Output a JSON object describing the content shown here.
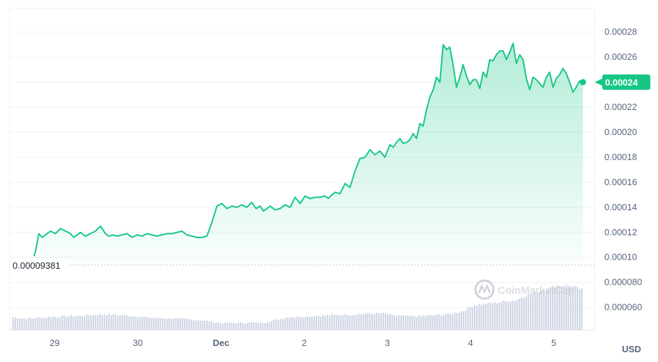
{
  "chart_data": {
    "type": "area",
    "currency": "USD",
    "y_ticks": [
      "0.00028",
      "0.00026",
      "0.00024",
      "0.00022",
      "0.00020",
      "0.00018",
      "0.00016",
      "0.00014",
      "0.00012",
      "0.00010",
      "0.000080",
      "0.000060"
    ],
    "y_tick_values": [
      0.00028,
      0.00026,
      0.00024,
      0.00022,
      0.0002,
      0.00018,
      0.00016,
      0.00014,
      0.00012,
      0.0001,
      8e-05,
      6e-05
    ],
    "ylim": [
      4.2e-05,
      0.000299
    ],
    "x_ticks": [
      {
        "label": "29",
        "x": 0.25,
        "bold": false
      },
      {
        "label": "30",
        "x": 1.25,
        "bold": false
      },
      {
        "label": "Dec",
        "x": 2.25,
        "bold": true
      },
      {
        "label": "2",
        "x": 3.25,
        "bold": false
      },
      {
        "label": "3",
        "x": 4.25,
        "bold": false
      },
      {
        "label": "4",
        "x": 5.25,
        "bold": false
      },
      {
        "label": "5",
        "x": 6.25,
        "bold": false
      }
    ],
    "xlim": [
      -0.29,
      6.74
    ],
    "current_price": {
      "label": "0.00024",
      "value": 0.00024
    },
    "baseline": {
      "label": "0.00009381",
      "value": 9.381e-05
    },
    "price": {
      "x": [
        0.0,
        0.02,
        0.06,
        0.1,
        0.14,
        0.2,
        0.26,
        0.32,
        0.38,
        0.44,
        0.48,
        0.52,
        0.56,
        0.62,
        0.68,
        0.74,
        0.8,
        0.86,
        0.9,
        0.95,
        1.0,
        1.06,
        1.12,
        1.18,
        1.24,
        1.3,
        1.36,
        1.42,
        1.48,
        1.54,
        1.6,
        1.66,
        1.72,
        1.78,
        1.84,
        1.9,
        1.96,
        2.02,
        2.08,
        2.14,
        2.2,
        2.26,
        2.32,
        2.38,
        2.44,
        2.5,
        2.56,
        2.62,
        2.67,
        2.72,
        2.76,
        2.8,
        2.84,
        2.9,
        2.96,
        3.02,
        3.08,
        3.14,
        3.2,
        3.26,
        3.32,
        3.38,
        3.44,
        3.5,
        3.54,
        3.58,
        3.62,
        3.68,
        3.74,
        3.8,
        3.86,
        3.92,
        3.98,
        4.04,
        4.1,
        4.16,
        4.22,
        4.28,
        4.32,
        4.36,
        4.4,
        4.44,
        4.48,
        4.52,
        4.56,
        4.6,
        4.64,
        4.68,
        4.72,
        4.76,
        4.8,
        4.84,
        4.88,
        4.92,
        4.96,
        5.0,
        5.04,
        5.08,
        5.12,
        5.16,
        5.2,
        5.24,
        5.28,
        5.32,
        5.36,
        5.4,
        5.44,
        5.48,
        5.52,
        5.56,
        5.6,
        5.64,
        5.68,
        5.72,
        5.76,
        5.8,
        5.84,
        5.88,
        5.92,
        5.96,
        6.0,
        6.04,
        6.08,
        6.12,
        6.16,
        6.2,
        6.24,
        6.28,
        6.32,
        6.36,
        6.4,
        6.44,
        6.48,
        6.52,
        6.56,
        6.6
      ],
      "y": [
        0.000101,
        0.000105,
        0.000119,
        0.000116,
        0.000118,
        0.000121,
        0.000119,
        0.000123,
        0.000121,
        0.000119,
        0.000116,
        0.000118,
        0.00012,
        0.000117,
        0.000119,
        0.000121,
        0.000125,
        0.000119,
        0.000117,
        0.000118,
        0.000117,
        0.000118,
        0.000119,
        0.000116,
        0.000118,
        0.000117,
        0.000119,
        0.000118,
        0.000117,
        0.000118,
        0.000119,
        0.000119,
        0.00012,
        0.000121,
        0.000118,
        0.000117,
        0.000116,
        0.000116,
        0.000117,
        0.000128,
        0.000141,
        0.000143,
        0.000139,
        0.000141,
        0.00014,
        0.000142,
        0.00014,
        0.000144,
        0.000139,
        0.000141,
        0.000137,
        0.000139,
        0.000141,
        0.000138,
        0.000139,
        0.000142,
        0.00014,
        0.000148,
        0.000143,
        0.000149,
        0.000147,
        0.000148,
        0.000148,
        0.000149,
        0.000147,
        0.00015,
        0.000152,
        0.000151,
        0.000159,
        0.000156,
        0.000169,
        0.000179,
        0.00018,
        0.000186,
        0.000182,
        0.000185,
        0.00018,
        0.00019,
        0.000188,
        0.000192,
        0.000195,
        0.000191,
        0.000192,
        0.000194,
        0.000199,
        0.000195,
        0.000207,
        0.000205,
        0.000218,
        0.000228,
        0.000234,
        0.000244,
        0.00024,
        0.00027,
        0.000266,
        0.000268,
        0.000254,
        0.000236,
        0.000244,
        0.000254,
        0.000245,
        0.000238,
        0.000242,
        0.000242,
        0.000235,
        0.000248,
        0.000244,
        0.000258,
        0.000257,
        0.000262,
        0.000265,
        0.000265,
        0.000258,
        0.000264,
        0.000271,
        0.000255,
        0.000262,
        0.000258,
        0.000243,
        0.000234,
        0.000244,
        0.000242,
        0.000239,
        0.000236,
        0.000244,
        0.000248,
        0.000236,
        0.000243,
        0.000246,
        0.000251,
        0.000247,
        0.00024,
        0.000232,
        0.000236,
        0.000241,
        0.00024
      ]
    },
    "volume": {
      "x": [
        -0.26,
        -0.1,
        0.06,
        0.22,
        0.38,
        0.54,
        0.7,
        0.86,
        1.02,
        1.18,
        1.34,
        1.5,
        1.66,
        1.82,
        1.98,
        2.14,
        2.26,
        2.42,
        2.58,
        2.74,
        2.9,
        3.06,
        3.22,
        3.38,
        3.54,
        3.7,
        3.86,
        4.02,
        4.18,
        4.34,
        4.5,
        4.66,
        4.82,
        4.98,
        5.14,
        5.3,
        5.46,
        5.62,
        5.78,
        5.94,
        6.1,
        6.26,
        6.42,
        6.6
      ],
      "y": [
        5.22e-05,
        5.1e-05,
        5.18e-05,
        5.25e-05,
        5.28e-05,
        5.32e-05,
        5.4e-05,
        5.45e-05,
        5.38e-05,
        5.32e-05,
        5.2e-05,
        5.15e-05,
        5.12e-05,
        5.05e-05,
        5e-05,
        4.85e-05,
        4.75e-05,
        4.75e-05,
        4.78e-05,
        4.78e-05,
        5e-05,
        5.24e-05,
        5.27e-05,
        5.33e-05,
        5.37e-05,
        5.42e-05,
        5.43e-05,
        5.52e-05,
        5.53e-05,
        5.34e-05,
        5.3e-05,
        5.32e-05,
        5.38e-05,
        5.46e-05,
        5.68e-05,
        6.22e-05,
        6.32e-05,
        6.45e-05,
        6.58e-05,
        7.05e-05,
        7.33e-05,
        7.74e-05,
        7.75e-05,
        7.4e-05
      ]
    }
  },
  "watermark": {
    "text": "CoinMarketCap",
    "icon": "coinmarketcap-logo"
  },
  "colors": {
    "line": "#16c784",
    "volume": "#cfd6e4",
    "grid": "#eff2f5",
    "badge": "#16c784",
    "baseline": "#a6b0c3"
  }
}
